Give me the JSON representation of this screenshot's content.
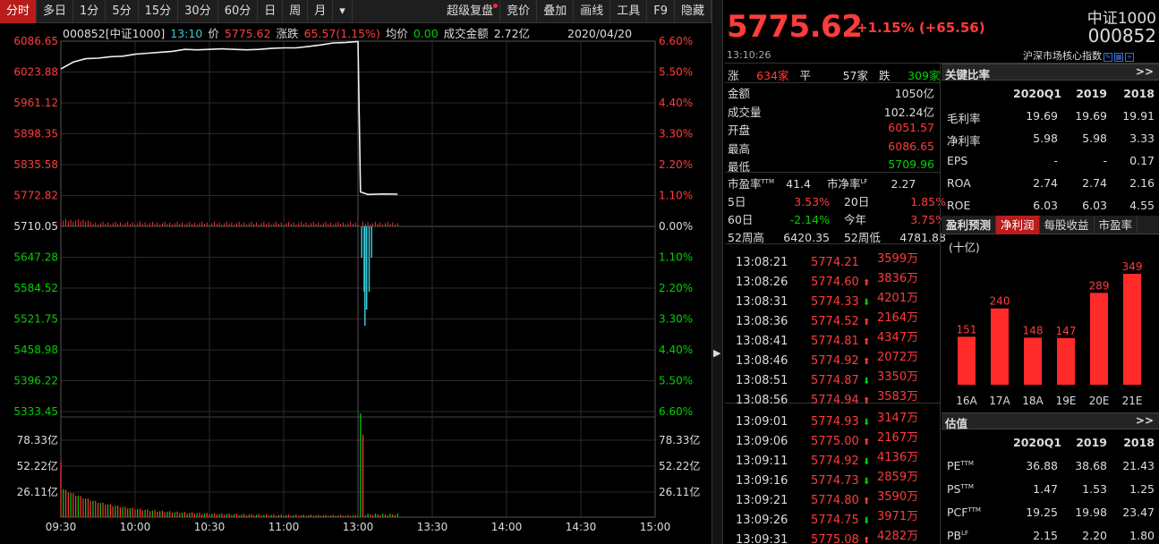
{
  "toolbar": {
    "items": [
      "分时",
      "多日",
      "1分",
      "5分",
      "15分",
      "30分",
      "60分",
      "日",
      "周",
      "月",
      "▾"
    ],
    "right_items": [
      "超级复盘",
      "竞价",
      "叠加",
      "画线",
      "工具",
      "F9",
      "隐藏"
    ]
  },
  "infobar": {
    "code_name": "000852[中证1000]",
    "time": "13:10",
    "price_label": "价",
    "price": "5775.62",
    "change_label": "涨跌",
    "change": "65.57(1.15%)",
    "avg_label": "均价",
    "avg": "0.00",
    "turnover_label": "成交金额",
    "turnover": "2.72亿",
    "date": "2020/04/20"
  },
  "chart_data": {
    "type": "line",
    "x_ticks": [
      "09:30",
      "10:00",
      "10:30",
      "11:00",
      "13:00",
      "13:30",
      "14:00",
      "14:30",
      "15:00"
    ],
    "y_left_ticks": [
      "6086.65",
      "6023.88",
      "5961.12",
      "5898.35",
      "5835.58",
      "5772.82",
      "5710.05",
      "5647.28",
      "5584.52",
      "5521.75",
      "5458.98",
      "5396.22",
      "5333.45"
    ],
    "y_right_ticks": [
      "6.60%",
      "5.50%",
      "4.40%",
      "3.30%",
      "2.20%",
      "1.10%",
      "0.00%",
      "1.10%",
      "2.20%",
      "3.30%",
      "4.40%",
      "5.50%",
      "6.60%"
    ],
    "y_range": [
      5333.45,
      6086.65
    ],
    "base": 5710.05,
    "volume_ticks": [
      "78.33亿",
      "52.22亿",
      "26.11亿"
    ],
    "price_series": [
      {
        "t": 0,
        "v": 6030
      },
      {
        "t": 5,
        "v": 6044
      },
      {
        "t": 10,
        "v": 6051
      },
      {
        "t": 15,
        "v": 6052
      },
      {
        "t": 20,
        "v": 6055
      },
      {
        "t": 25,
        "v": 6056
      },
      {
        "t": 30,
        "v": 6060
      },
      {
        "t": 35,
        "v": 6062
      },
      {
        "t": 40,
        "v": 6064
      },
      {
        "t": 45,
        "v": 6066
      },
      {
        "t": 50,
        "v": 6070
      },
      {
        "t": 55,
        "v": 6069
      },
      {
        "t": 60,
        "v": 6070
      },
      {
        "t": 65,
        "v": 6071
      },
      {
        "t": 70,
        "v": 6070
      },
      {
        "t": 75,
        "v": 6069
      },
      {
        "t": 80,
        "v": 6070
      },
      {
        "t": 85,
        "v": 6072
      },
      {
        "t": 90,
        "v": 6073
      },
      {
        "t": 95,
        "v": 6073
      },
      {
        "t": 100,
        "v": 6076
      },
      {
        "t": 105,
        "v": 6079
      },
      {
        "t": 110,
        "v": 6083
      },
      {
        "t": 115,
        "v": 6084
      },
      {
        "t": 120,
        "v": 6086
      },
      {
        "t": 121,
        "v": 5780
      },
      {
        "t": 124,
        "v": 5775
      },
      {
        "t": 130,
        "v": 5776
      },
      {
        "t": 136,
        "v": 5775.62
      }
    ]
  },
  "quote": {
    "price": "5775.62",
    "change": "+1.15% (+65.56)",
    "name": "中证1000",
    "code": "000852",
    "time": "13:10:26",
    "desc": "沪深市场核心指数"
  },
  "breadth": {
    "up_label": "涨",
    "up": "634家",
    "flat_label": "平",
    "flat": "57家",
    "down_label": "跌",
    "down": "309家"
  },
  "stats": [
    {
      "label": "金额",
      "value": "1050亿",
      "color": "#dddddd"
    },
    {
      "label": "成交量",
      "value": "102.24亿",
      "color": "#dddddd"
    },
    {
      "label": "开盘",
      "value": "6051.57",
      "color": "#ff3c3c"
    },
    {
      "label": "最高",
      "value": "6086.65",
      "color": "#ff3c3c"
    },
    {
      "label": "最低",
      "value": "5709.96",
      "color": "#00d200"
    }
  ],
  "valuation": {
    "pe_label": "市盈率TTM",
    "pe": "41.4",
    "pb_label": "市净率LF",
    "pb": "2.27",
    "d5_label": "5日",
    "d5": "3.53%",
    "d20_label": "20日",
    "d20": "1.85%",
    "d60_label": "60日",
    "d60": "-2.14%",
    "ytd_label": "今年",
    "ytd": "3.75%",
    "hi52_label": "52周高",
    "hi52": "6420.35",
    "lo52_label": "52周低",
    "lo52": "4781.88"
  },
  "ticks": [
    {
      "time": "13:08:21",
      "price": "5774.21",
      "dir": "",
      "vol": "3599万"
    },
    {
      "time": "13:08:26",
      "price": "5774.60",
      "dir": "up",
      "vol": "3836万"
    },
    {
      "time": "13:08:31",
      "price": "5774.33",
      "dir": "down",
      "vol": "4201万"
    },
    {
      "time": "13:08:36",
      "price": "5774.52",
      "dir": "up",
      "vol": "2164万"
    },
    {
      "time": "13:08:41",
      "price": "5774.81",
      "dir": "up",
      "vol": "4347万"
    },
    {
      "time": "13:08:46",
      "price": "5774.92",
      "dir": "up",
      "vol": "2072万"
    },
    {
      "time": "13:08:51",
      "price": "5774.87",
      "dir": "down",
      "vol": "3350万"
    },
    {
      "time": "13:08:56",
      "price": "5774.94",
      "dir": "up",
      "vol": "3583万"
    },
    {
      "time": "13:09:01",
      "price": "5774.93",
      "dir": "down",
      "vol": "3147万"
    },
    {
      "time": "13:09:06",
      "price": "5775.00",
      "dir": "up",
      "vol": "2167万"
    },
    {
      "time": "13:09:11",
      "price": "5774.92",
      "dir": "down",
      "vol": "4136万"
    },
    {
      "time": "13:09:16",
      "price": "5774.73",
      "dir": "down",
      "vol": "2859万"
    },
    {
      "time": "13:09:21",
      "price": "5774.80",
      "dir": "up",
      "vol": "3590万"
    },
    {
      "time": "13:09:26",
      "price": "5774.75",
      "dir": "down",
      "vol": "3971万"
    },
    {
      "time": "13:09:31",
      "price": "5775.08",
      "dir": "up",
      "vol": "4282万"
    }
  ],
  "key_ratios": {
    "title": "关键比率",
    "more": ">>",
    "cols": [
      "2020Q1",
      "2019",
      "2018"
    ],
    "rows": [
      {
        "label": "毛利率",
        "vals": [
          "19.69",
          "19.69",
          "19.91"
        ]
      },
      {
        "label": "净利率",
        "vals": [
          "5.98",
          "5.98",
          "3.33"
        ]
      },
      {
        "label": "EPS",
        "vals": [
          "-",
          "-",
          "0.17"
        ]
      },
      {
        "label": "ROA",
        "vals": [
          "2.74",
          "2.74",
          "2.16"
        ]
      },
      {
        "label": "ROE",
        "vals": [
          "6.03",
          "6.03",
          "4.55"
        ]
      }
    ]
  },
  "forecast": {
    "tabs": [
      "盈利预测",
      "净利润",
      "每股收益",
      "市盈率"
    ],
    "unit": "(十亿)",
    "bar_chart": {
      "type": "bar",
      "categories": [
        "16A",
        "17A",
        "18A",
        "19E",
        "20E",
        "21E"
      ],
      "values": [
        151,
        240,
        148,
        147,
        289,
        349
      ]
    }
  },
  "estimates": {
    "title": "估值",
    "more": ">>",
    "cols": [
      "2020Q1",
      "2019",
      "2018"
    ],
    "rows": [
      {
        "label": "PE",
        "sup": "TTM",
        "vals": [
          "36.88",
          "38.68",
          "21.43"
        ]
      },
      {
        "label": "PS",
        "sup": "TTM",
        "vals": [
          "1.47",
          "1.53",
          "1.25"
        ]
      },
      {
        "label": "PCF",
        "sup": "TTM",
        "vals": [
          "19.25",
          "19.98",
          "23.47"
        ]
      },
      {
        "label": "PB",
        "sup": "LF",
        "vals": [
          "2.15",
          "2.20",
          "1.80"
        ]
      }
    ]
  },
  "colors": {
    "up": "#ff3c3c",
    "down": "#00d200",
    "accent": "#b81c1c",
    "vol_down": "#37c8d6"
  }
}
